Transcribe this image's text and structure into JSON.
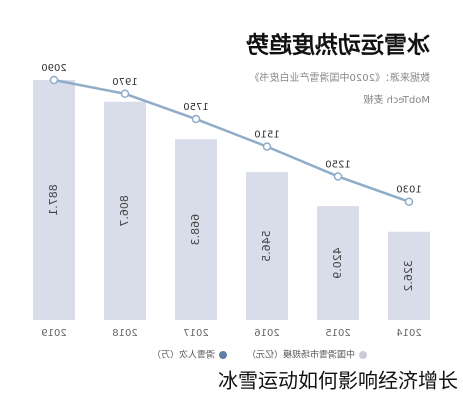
{
  "chart_data": {
    "type": "bar-line",
    "title": "冰雪运动热度趋势",
    "source": [
      "数据来源：《2020中国滑雪产业白皮书》",
      "MobTech 麦椒"
    ],
    "categories": [
      "2014",
      "2015",
      "2016",
      "2017",
      "2018",
      "2019"
    ],
    "series": [
      {
        "name": "中国滑雪市场规模（亿元）",
        "type": "bar",
        "color": "#d9dce9",
        "values": [
          326.2,
          420.9,
          546.5,
          668.3,
          806.7,
          887.1
        ]
      },
      {
        "name": "滑雪人次（万）",
        "type": "line",
        "color": "#8fadc9",
        "values": [
          1030,
          1250,
          1510,
          1750,
          1970,
          2090
        ]
      }
    ]
  },
  "caption": "冰雪运动如何影响经济增长"
}
